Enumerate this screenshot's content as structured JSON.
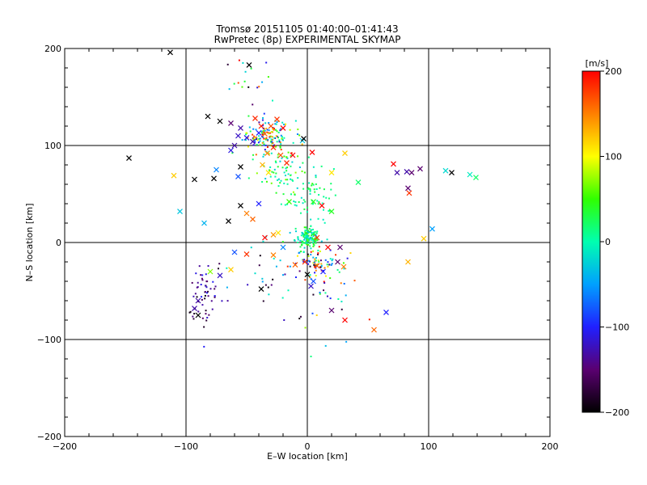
{
  "chart_data": {
    "type": "scatter",
    "title": "Tromsø 20151105 01:40:00–01:41:43",
    "subtitle": "RwPretec (8p) EXPERIMENTAL SKYMAP",
    "xlabel": "E–W location [km]",
    "ylabel": "N–S location [km]",
    "xlim": [
      -200,
      200
    ],
    "ylim": [
      -200,
      200
    ],
    "x_ticks": [
      "−200",
      "−100",
      "0",
      "100",
      "200"
    ],
    "y_ticks": [
      "−200",
      "−100",
      "0",
      "100",
      "200"
    ],
    "grid": true,
    "colorbar": {
      "label": "[m/s]",
      "range": [
        -200,
        200
      ],
      "ticks": [
        "200",
        "100",
        "0",
        "−100",
        "−200"
      ],
      "colormap": [
        "#000000",
        "#5a0070",
        "#2020ff",
        "#00a0ff",
        "#00ffb0",
        "#30ff00",
        "#ffff00",
        "#ff8000",
        "#ff0000"
      ]
    },
    "crosses": [
      [
        -113,
        196,
        -200
      ],
      [
        -48,
        183,
        -200
      ],
      [
        -82,
        130,
        -200
      ],
      [
        -72,
        125,
        -200
      ],
      [
        -63,
        123,
        -150
      ],
      [
        -55,
        118,
        -130
      ],
      [
        -25,
        127,
        180
      ],
      [
        -30,
        120,
        170
      ],
      [
        -38,
        120,
        190
      ],
      [
        -43,
        128,
        185
      ],
      [
        -20,
        118,
        200
      ],
      [
        -35,
        112,
        160
      ],
      [
        -57,
        110,
        -120
      ],
      [
        -50,
        108,
        -110
      ],
      [
        -45,
        104,
        -130
      ],
      [
        -40,
        113,
        -100
      ],
      [
        -60,
        100,
        -130
      ],
      [
        -63,
        95,
        -110
      ],
      [
        -33,
        92,
        150
      ],
      [
        -28,
        98,
        180
      ],
      [
        -22,
        90,
        170
      ],
      [
        -12,
        90,
        200
      ],
      [
        -17,
        82,
        185
      ],
      [
        -37,
        80,
        130
      ],
      [
        -32,
        72,
        110
      ],
      [
        -55,
        78,
        -200
      ],
      [
        -57,
        68,
        -80
      ],
      [
        -75,
        75,
        -60
      ],
      [
        -93,
        65,
        -200
      ],
      [
        -77,
        66,
        -200
      ],
      [
        -110,
        69,
        120
      ],
      [
        -147,
        87,
        -200
      ],
      [
        -105,
        32,
        -30
      ],
      [
        -85,
        20,
        -40
      ],
      [
        -65,
        22,
        -200
      ],
      [
        -55,
        38,
        -200
      ],
      [
        -50,
        30,
        150
      ],
      [
        -40,
        40,
        -100
      ],
      [
        -45,
        24,
        160
      ],
      [
        -15,
        42,
        50
      ],
      [
        5,
        42,
        40
      ],
      [
        12,
        38,
        200
      ],
      [
        20,
        32,
        40
      ],
      [
        31,
        92,
        120
      ],
      [
        -4,
        105,
        -30
      ],
      [
        4,
        93,
        200
      ],
      [
        20,
        72,
        110
      ],
      [
        42,
        62,
        20
      ],
      [
        71,
        81,
        200
      ],
      [
        74,
        72,
        -130
      ],
      [
        82,
        73,
        -130
      ],
      [
        93,
        76,
        -150
      ],
      [
        86,
        72,
        -150
      ],
      [
        114,
        74,
        -20
      ],
      [
        119,
        72,
        -200
      ],
      [
        134,
        70,
        -10
      ],
      [
        139,
        67,
        20
      ],
      [
        83,
        56,
        -150
      ],
      [
        84,
        51,
        180
      ],
      [
        103,
        14,
        -50
      ],
      [
        96,
        4,
        120
      ],
      [
        83,
        -20,
        130
      ],
      [
        -35,
        5,
        200
      ],
      [
        -28,
        8,
        140
      ],
      [
        -24,
        10,
        110
      ],
      [
        8,
        5,
        180
      ],
      [
        17,
        -5,
        200
      ],
      [
        27,
        -5,
        -150
      ],
      [
        -20,
        -5,
        -60
      ],
      [
        -28,
        -13,
        150
      ],
      [
        -50,
        -12,
        180
      ],
      [
        -60,
        -10,
        -80
      ],
      [
        -63,
        -28,
        120
      ],
      [
        -72,
        -34,
        -120
      ],
      [
        -80,
        -30,
        70
      ],
      [
        -90,
        -60,
        -130
      ],
      [
        -93,
        -68,
        -130
      ],
      [
        -90,
        -75,
        -200
      ],
      [
        -38,
        -48,
        -200
      ],
      [
        5,
        -40,
        -80
      ],
      [
        13,
        -30,
        -100
      ],
      [
        25,
        -20,
        -150
      ],
      [
        30,
        -25,
        150
      ],
      [
        55,
        -90,
        160
      ],
      [
        65,
        -72,
        -100
      ],
      [
        31,
        -80,
        200
      ],
      [
        20,
        -70,
        -150
      ],
      [
        8,
        -24,
        170
      ],
      [
        -2,
        -20,
        180
      ],
      [
        0,
        -33,
        -200
      ],
      [
        3,
        -45,
        -120
      ],
      [
        -10,
        -23,
        160
      ],
      [
        -3,
        107,
        -200
      ]
    ],
    "clusters": [
      {
        "center": [
          -33,
          110
        ],
        "spread": [
          10,
          8
        ],
        "count": 130,
        "vrange": [
          -140,
          200
        ]
      },
      {
        "center": [
          -20,
          75
        ],
        "spread": [
          12,
          15
        ],
        "count": 80,
        "vrange": [
          -30,
          80
        ]
      },
      {
        "center": [
          0,
          40
        ],
        "spread": [
          10,
          22
        ],
        "count": 70,
        "vrange": [
          -20,
          40
        ]
      },
      {
        "center": [
          0,
          5
        ],
        "spread": [
          5,
          5
        ],
        "count": 140,
        "vrange": [
          -40,
          60
        ]
      },
      {
        "center": [
          5,
          -20
        ],
        "spread": [
          12,
          8
        ],
        "count": 70,
        "vrange": [
          -200,
          200
        ]
      },
      {
        "center": [
          -85,
          -55
        ],
        "spread": [
          7,
          18
        ],
        "count": 60,
        "vrange": [
          -200,
          -100
        ]
      },
      {
        "center": [
          -50,
          170
        ],
        "spread": [
          10,
          15
        ],
        "count": 20,
        "vrange": [
          -200,
          200
        ]
      },
      {
        "center": [
          20,
          -50
        ],
        "spread": [
          15,
          20
        ],
        "count": 30,
        "vrange": [
          -200,
          200
        ]
      },
      {
        "center": [
          -30,
          -40
        ],
        "spread": [
          20,
          20
        ],
        "count": 30,
        "vrange": [
          -200,
          0
        ]
      }
    ]
  }
}
